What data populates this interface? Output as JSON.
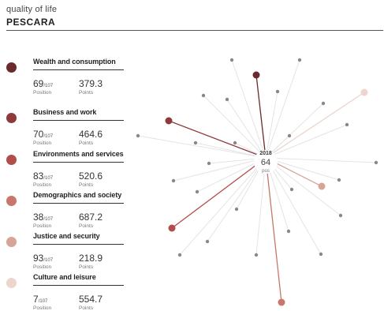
{
  "header": {
    "subtitle": "quality of life",
    "title": "PESCARA"
  },
  "total_of": "/107",
  "labels": {
    "position": "Position",
    "points": "Points"
  },
  "categories": [
    {
      "name": "Wealth and consumption",
      "position": "69",
      "points": "379.3",
      "color": "#6b2a2e"
    },
    {
      "name": "Business and work",
      "position": "70",
      "points": "464.6",
      "color": "#8e3a3c"
    },
    {
      "name": "Environments and services",
      "position": "83",
      "points": "520.6",
      "color": "#b34d4a"
    },
    {
      "name": "Demographics and society",
      "position": "38",
      "points": "687.2",
      "color": "#c7776b"
    },
    {
      "name": "Justice and security",
      "position": "93",
      "points": "218.9",
      "color": "#d7a597"
    },
    {
      "name": "Culture and leisure",
      "position": "7",
      "points": "554.7",
      "color": "#ecd5cc"
    }
  ],
  "center": {
    "year": "2018",
    "value": "64",
    "unit": "pos"
  }
}
